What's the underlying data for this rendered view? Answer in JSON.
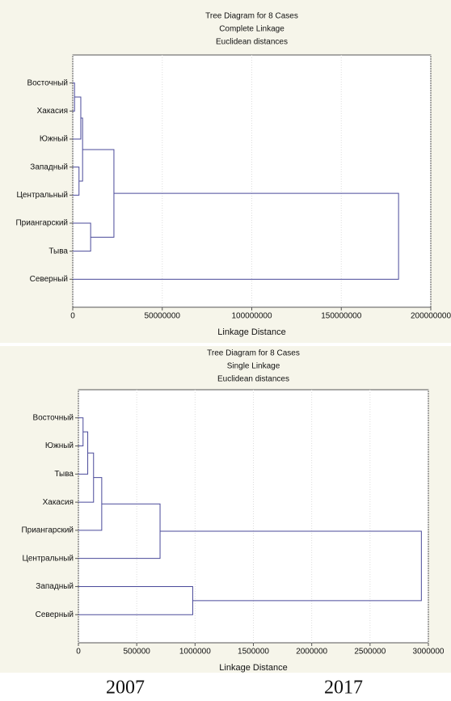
{
  "chart_data": [
    {
      "type": "dendrogram",
      "title": "Tree Diagram for 8 Cases",
      "subtitles": [
        "Complete Linkage",
        "Euclidean distances"
      ],
      "xlabel": "Linkage Distance",
      "leaves": [
        "Восточный",
        "Хакасия",
        "Южный",
        "Западный",
        "Центральный",
        "Приангарский",
        "Тыва",
        "Северный"
      ],
      "merges": [
        {
          "left": 0,
          "right": 1,
          "height": 1000000
        },
        {
          "left": 8,
          "right": 2,
          "height": 4500000
        },
        {
          "left": 3,
          "right": 4,
          "height": 3500000
        },
        {
          "left": 9,
          "right": 10,
          "height": 5500000
        },
        {
          "left": 5,
          "right": 6,
          "height": 10000000
        },
        {
          "left": 11,
          "right": 12,
          "height": 23000000
        },
        {
          "left": 13,
          "right": 7,
          "height": 182000000
        }
      ],
      "xlim": [
        0,
        200000000
      ],
      "xticks": [
        0,
        50000000,
        100000000,
        150000000,
        200000000
      ],
      "grid": true,
      "color": "#4a4a9a"
    },
    {
      "type": "dendrogram",
      "title": "Tree Diagram for 8 Cases",
      "subtitles": [
        "Single Linkage",
        "Euclidean distances"
      ],
      "xlabel": "Linkage Distance",
      "leaves": [
        "Восточный",
        "Южный",
        "Тыва",
        "Хакасия",
        "Приангарский",
        "Центральный",
        "Западный",
        "Северный"
      ],
      "merges": [
        {
          "left": 0,
          "right": 1,
          "height": 40000
        },
        {
          "left": 8,
          "right": 2,
          "height": 80000
        },
        {
          "left": 9,
          "right": 3,
          "height": 130000
        },
        {
          "left": 10,
          "right": 4,
          "height": 200000
        },
        {
          "left": 11,
          "right": 5,
          "height": 700000
        },
        {
          "left": 6,
          "right": 7,
          "height": 980000
        },
        {
          "left": 12,
          "right": 13,
          "height": 2940000
        }
      ],
      "xlim": [
        0,
        3000000
      ],
      "xticks": [
        0,
        500000,
        1000000,
        1500000,
        2000000,
        2500000,
        3000000
      ],
      "grid": true,
      "color": "#4a4a9a"
    }
  ],
  "captions": [
    "2007",
    "2017"
  ]
}
